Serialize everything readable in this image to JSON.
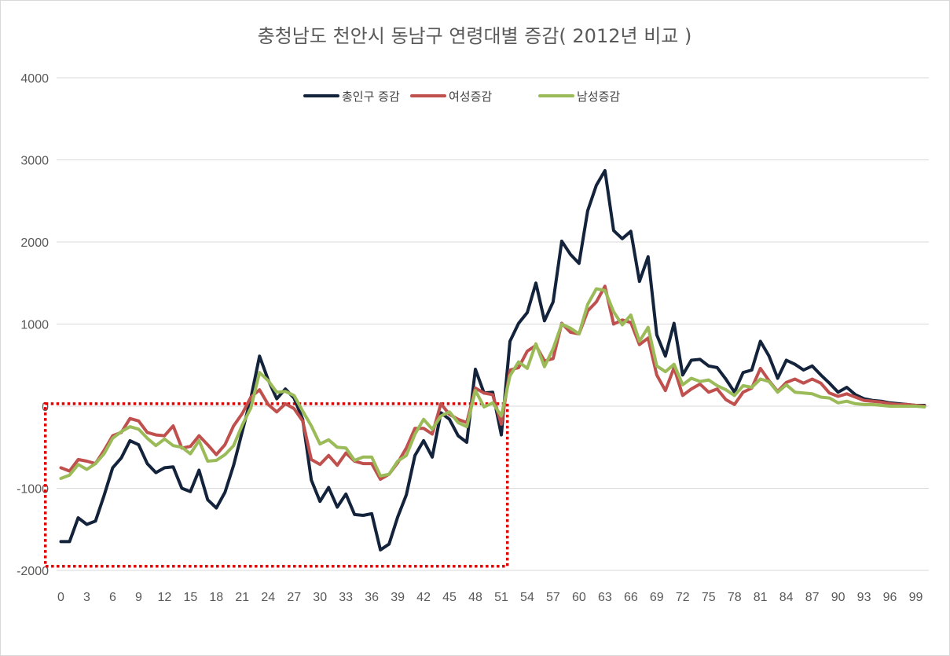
{
  "chart_data": {
    "type": "line",
    "title": "충청남도 천안시 동남구 연령대별 증감( 2012년 비교 )",
    "xlabel": "",
    "ylabel": "",
    "ylim": [
      -2000,
      4000
    ],
    "y_ticks": [
      4000,
      3000,
      2000,
      1000,
      0,
      -1000,
      -2000
    ],
    "y_tick_labels": [
      "4000",
      "3000",
      "2000",
      "1000",
      "0",
      "-1000",
      "-2000"
    ],
    "x_tick_labels": [
      "0",
      "3",
      "6",
      "9",
      "12",
      "15",
      "18",
      "21",
      "24",
      "27",
      "30",
      "33",
      "36",
      "39",
      "42",
      "45",
      "48",
      "51",
      "54",
      "57",
      "60",
      "63",
      "66",
      "69",
      "72",
      "75",
      "78",
      "81",
      "84",
      "87",
      "90",
      "93",
      "96",
      "99"
    ],
    "x": [
      0,
      1,
      2,
      3,
      4,
      5,
      6,
      7,
      8,
      9,
      10,
      11,
      12,
      13,
      14,
      15,
      16,
      17,
      18,
      19,
      20,
      21,
      22,
      23,
      24,
      25,
      26,
      27,
      28,
      29,
      30,
      31,
      32,
      33,
      34,
      35,
      36,
      37,
      38,
      39,
      40,
      41,
      42,
      43,
      44,
      45,
      46,
      47,
      48,
      49,
      50,
      51,
      52,
      53,
      54,
      55,
      56,
      57,
      58,
      59,
      60,
      61,
      62,
      63,
      64,
      65,
      66,
      67,
      68,
      69,
      70,
      71,
      72,
      73,
      74,
      75,
      76,
      77,
      78,
      79,
      80,
      81,
      82,
      83,
      84,
      85,
      86,
      87,
      88,
      89,
      90,
      91,
      92,
      93,
      94,
      95,
      96,
      97,
      98,
      99,
      100
    ],
    "grid": true,
    "legend_position": "top",
    "highlight_box": {
      "x_from": -1.8,
      "x_to": 51.7,
      "y_from": -1950,
      "y_to": 30,
      "color": "#e00000",
      "style": "dotted"
    },
    "series": [
      {
        "name": "총인구 증감",
        "color": "#14233c",
        "values": [
          -1650,
          -1650,
          -1360,
          -1440,
          -1400,
          -1090,
          -750,
          -630,
          -420,
          -470,
          -700,
          -810,
          -750,
          -740,
          -1000,
          -1040,
          -780,
          -1140,
          -1240,
          -1050,
          -720,
          -310,
          100,
          610,
          320,
          90,
          210,
          100,
          -160,
          -900,
          -1160,
          -990,
          -1230,
          -1070,
          -1320,
          -1330,
          -1310,
          -1750,
          -1680,
          -1350,
          -1080,
          -600,
          -420,
          -620,
          -80,
          -160,
          -360,
          -440,
          450,
          160,
          170,
          -350,
          790,
          1010,
          1140,
          1500,
          1040,
          1270,
          2010,
          1850,
          1740,
          2380,
          2690,
          2870,
          2140,
          2040,
          2130,
          1520,
          1820,
          870,
          610,
          1010,
          380,
          560,
          570,
          490,
          470,
          330,
          170,
          410,
          440,
          790,
          610,
          340,
          560,
          510,
          440,
          490,
          380,
          280,
          170,
          230,
          140,
          90,
          70,
          60,
          40,
          30,
          20,
          10,
          10
        ]
      },
      {
        "name": "여성증감",
        "color": "#c0504d",
        "values": [
          -750,
          -790,
          -650,
          -670,
          -700,
          -540,
          -360,
          -320,
          -150,
          -180,
          -320,
          -350,
          -360,
          -240,
          -510,
          -490,
          -360,
          -470,
          -590,
          -470,
          -240,
          -90,
          110,
          200,
          20,
          -70,
          30,
          -30,
          -180,
          -650,
          -710,
          -600,
          -720,
          -570,
          -670,
          -700,
          -700,
          -890,
          -830,
          -690,
          -510,
          -270,
          -270,
          -340,
          30,
          -100,
          -160,
          -200,
          220,
          160,
          140,
          -220,
          440,
          470,
          670,
          740,
          550,
          580,
          1010,
          900,
          880,
          1160,
          1270,
          1460,
          1000,
          1050,
          1020,
          750,
          830,
          380,
          190,
          470,
          130,
          210,
          270,
          170,
          210,
          80,
          20,
          170,
          220,
          460,
          310,
          180,
          290,
          330,
          280,
          330,
          280,
          160,
          120,
          150,
          110,
          70,
          60,
          50,
          30,
          20,
          20,
          10,
          0
        ]
      },
      {
        "name": "남성증감",
        "color": "#9bbb59",
        "values": [
          -880,
          -840,
          -710,
          -770,
          -700,
          -580,
          -390,
          -310,
          -250,
          -280,
          -390,
          -480,
          -400,
          -480,
          -500,
          -580,
          -420,
          -670,
          -660,
          -590,
          -480,
          -230,
          -20,
          410,
          310,
          170,
          180,
          130,
          -60,
          -240,
          -460,
          -410,
          -500,
          -510,
          -660,
          -620,
          -620,
          -850,
          -830,
          -670,
          -600,
          -340,
          -160,
          -280,
          -120,
          -70,
          -200,
          -250,
          190,
          -10,
          40,
          -120,
          370,
          540,
          460,
          760,
          480,
          700,
          1000,
          950,
          880,
          1240,
          1430,
          1410,
          1150,
          990,
          1110,
          790,
          960,
          490,
          420,
          510,
          260,
          340,
          300,
          320,
          250,
          200,
          130,
          250,
          230,
          330,
          300,
          170,
          260,
          170,
          160,
          150,
          110,
          100,
          40,
          60,
          30,
          20,
          20,
          10,
          0,
          0,
          0,
          0,
          -10
        ]
      }
    ]
  }
}
